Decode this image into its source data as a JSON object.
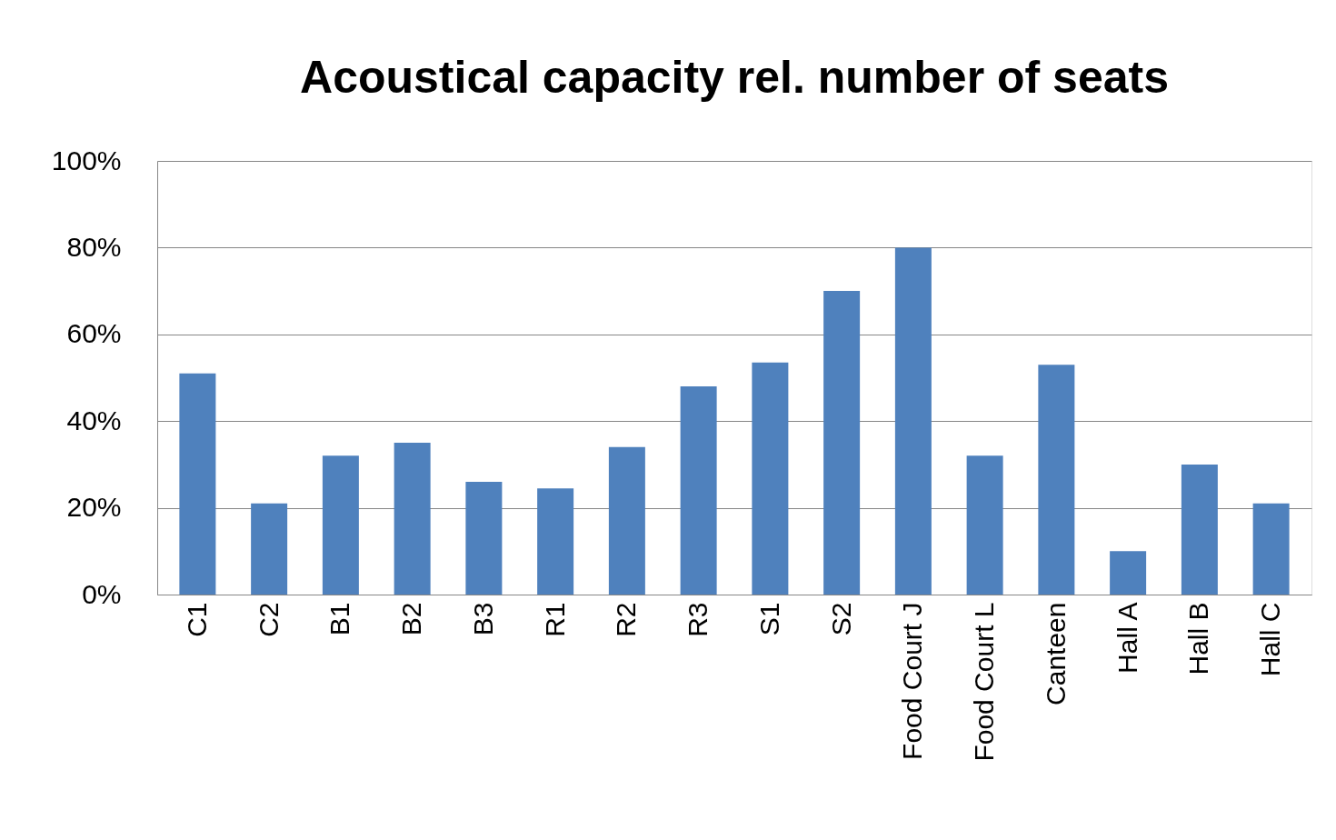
{
  "chart_data": {
    "type": "bar",
    "title": "Acoustical capacity rel. number of seats",
    "categories": [
      "C1",
      "C2",
      "B1",
      "B2",
      "B3",
      "R1",
      "R2",
      "R3",
      "S1",
      "S2",
      "Food Court J",
      "Food Court L",
      "Canteen",
      "Hall A",
      "Hall B",
      "Hall C"
    ],
    "values": [
      51,
      21,
      32,
      35,
      26,
      24.5,
      34,
      48,
      53.5,
      70,
      80,
      32,
      53,
      10,
      30,
      21
    ],
    "color": "#4f81bd",
    "ylim": [
      0,
      100
    ],
    "yticks": [
      {
        "value": 0,
        "label": "0%"
      },
      {
        "value": 20,
        "label": "20%"
      },
      {
        "value": 40,
        "label": "40%"
      },
      {
        "value": 60,
        "label": "60%"
      },
      {
        "value": 80,
        "label": "80%"
      },
      {
        "value": 100,
        "label": "100%"
      }
    ],
    "grid": "y"
  }
}
